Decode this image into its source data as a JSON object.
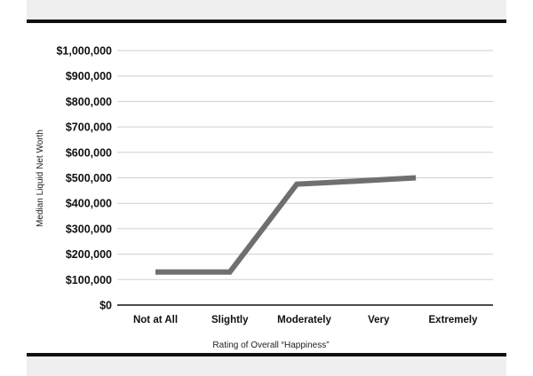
{
  "chart_data": {
    "type": "line",
    "title": "",
    "xlabel": "Rating of Overall “Happiness”",
    "ylabel": "Median Liquid Net Worth",
    "categories": [
      "Not at All",
      "Slightly",
      "Moderately",
      "Very",
      "Extremely"
    ],
    "series": [
      {
        "values": [
          130000,
          130000,
          475000,
          487000,
          500000
        ]
      }
    ],
    "x_positions": [
      0,
      1,
      1.9,
      2.7,
      3.5
    ],
    "ylim": [
      0,
      1000000
    ],
    "yticks": [
      0,
      100000,
      200000,
      300000,
      400000,
      500000,
      600000,
      700000,
      800000,
      900000,
      1000000
    ],
    "ytick_labels": [
      "$0",
      "$100,000",
      "$200,000",
      "$300,000",
      "$400,000",
      "$500,000",
      "$600,000",
      "$700,000",
      "$800,000",
      "$900,000",
      "$1,000,000"
    ],
    "grid": true,
    "colors": {
      "line": "#6f6f6f",
      "grid": "#cfcfcf",
      "axis": "#111111",
      "band": "#efefef"
    }
  }
}
